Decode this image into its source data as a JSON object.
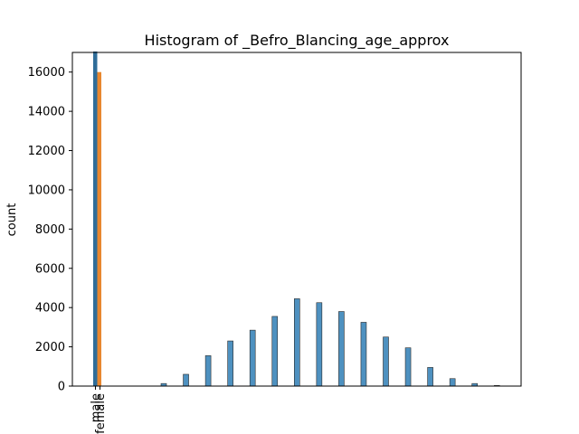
{
  "chart_data": {
    "type": "bar",
    "title": "Histogram of _Befro_Blancing_age_approx",
    "xlabel": "",
    "ylabel": "count",
    "ylim": [
      0,
      17000
    ],
    "yticks": [
      0,
      2000,
      4000,
      6000,
      8000,
      10000,
      12000,
      14000,
      16000
    ],
    "grid": false,
    "legend": "none",
    "category_bars": [
      {
        "label": "male",
        "value": 17050,
        "color": "#2f6d99"
      },
      {
        "label": "female",
        "value": 16000,
        "color": "#e8872f"
      }
    ],
    "histogram_bars": [
      {
        "value": 130
      },
      {
        "value": 600
      },
      {
        "value": 1550
      },
      {
        "value": 2300
      },
      {
        "value": 2850
      },
      {
        "value": 3550
      },
      {
        "value": 4450
      },
      {
        "value": 4250
      },
      {
        "value": 3800
      },
      {
        "value": 3250
      },
      {
        "value": 2500
      },
      {
        "value": 1950
      },
      {
        "value": 950
      },
      {
        "value": 380
      },
      {
        "value": 130
      },
      {
        "value": 30
      }
    ],
    "histogram_color": "#4e91c0"
  }
}
